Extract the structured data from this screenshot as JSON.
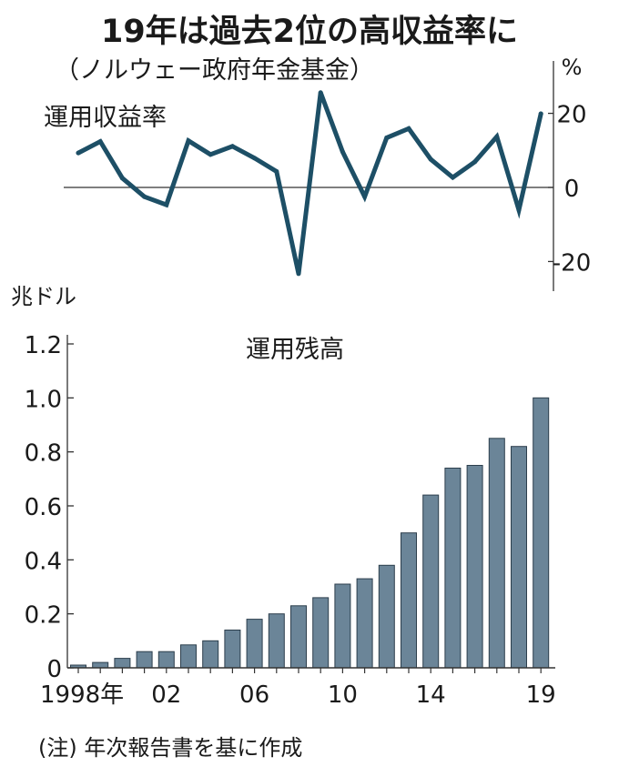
{
  "title": "19年は過去2位の高収益率に",
  "subtitle": "（ノルウェー政府年金基金）",
  "note": "(注) 年次報告書を基に作成",
  "chart_data": [
    {
      "type": "line",
      "ylabel": "%",
      "series_label": "運用収益率",
      "x": [
        1998,
        1999,
        2000,
        2001,
        2002,
        2003,
        2004,
        2005,
        2006,
        2007,
        2008,
        2009,
        2010,
        2011,
        2012,
        2013,
        2014,
        2015,
        2016,
        2017,
        2018,
        2019
      ],
      "series": [
        {
          "values": [
            9.3,
            12.4,
            2.5,
            -2.5,
            -4.7,
            12.6,
            8.9,
            11.1,
            7.9,
            4.3,
            -23.3,
            25.6,
            9.6,
            -2.5,
            13.4,
            15.9,
            7.6,
            2.7,
            6.9,
            13.7,
            -6.1,
            19.9
          ]
        }
      ],
      "ylim": [
        -28,
        28
      ],
      "yticks": [
        20,
        0,
        -20
      ],
      "ytick_labels": [
        "20",
        "0",
        "-20"
      ],
      "color": "#1d4f66"
    },
    {
      "type": "bar",
      "ylabel": "兆ドル",
      "series_label": "運用残高",
      "x": [
        1998,
        1999,
        2000,
        2001,
        2002,
        2003,
        2004,
        2005,
        2006,
        2007,
        2008,
        2009,
        2010,
        2011,
        2012,
        2013,
        2014,
        2015,
        2016,
        2017,
        2018,
        2019
      ],
      "series": [
        {
          "values": [
            0.01,
            0.02,
            0.035,
            0.06,
            0.06,
            0.085,
            0.1,
            0.14,
            0.18,
            0.2,
            0.23,
            0.26,
            0.31,
            0.33,
            0.38,
            0.5,
            0.64,
            0.74,
            0.75,
            0.85,
            0.82,
            1.0
          ]
        }
      ],
      "ylim": [
        0,
        1.2
      ],
      "yticks": [
        0,
        0.2,
        0.4,
        0.6,
        0.8,
        1.0,
        1.2
      ],
      "ytick_labels": [
        "0",
        "0.2",
        "0.4",
        "0.6",
        "0.8",
        "1.0",
        "1.2"
      ],
      "xtick_labels": [
        {
          "x": 1998,
          "label": "1998年"
        },
        {
          "x": 2002,
          "label": "02"
        },
        {
          "x": 2006,
          "label": "06"
        },
        {
          "x": 2010,
          "label": "10"
        },
        {
          "x": 2014,
          "label": "14"
        },
        {
          "x": 2019,
          "label": "19"
        }
      ],
      "color": "#6b8598"
    }
  ]
}
